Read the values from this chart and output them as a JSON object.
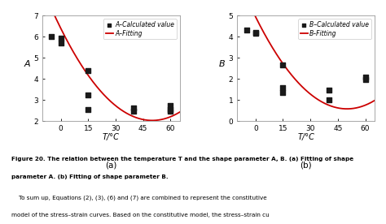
{
  "subplot_a": {
    "scatter_x": [
      -5,
      0,
      0,
      15,
      15,
      15,
      40,
      40,
      60,
      60,
      60
    ],
    "scatter_y": [
      6.0,
      5.7,
      5.95,
      4.4,
      3.25,
      2.55,
      2.6,
      2.45,
      2.75,
      2.55,
      2.45
    ],
    "fit_coeffs_a": 0.00175,
    "fit_coeffs_b": -0.175,
    "fit_coeffs_c": 6.4,
    "fit_x_start": -10,
    "fit_x_end": 65,
    "ylabel": "A",
    "xlabel": "T/°C",
    "ylim": [
      2,
      7
    ],
    "yticks": [
      2,
      3,
      4,
      5,
      6,
      7
    ],
    "xlim": [
      -10,
      65
    ],
    "xticks": [
      0,
      15,
      30,
      45,
      60
    ],
    "legend_scatter": "A–Calculated value",
    "legend_fit": "A–Fitting",
    "sublabel": "(a)"
  },
  "subplot_b": {
    "scatter_x": [
      -5,
      0,
      0,
      15,
      15,
      15,
      40,
      40,
      60,
      60
    ],
    "scatter_y": [
      4.3,
      4.2,
      4.15,
      2.65,
      1.6,
      1.35,
      1.45,
      1.0,
      2.1,
      1.95
    ],
    "fit_coeffs_a": 0.00175,
    "fit_coeffs_b": -0.175,
    "fit_coeffs_c": 4.95,
    "fit_x_start": -10,
    "fit_x_end": 65,
    "ylabel": "B",
    "xlabel": "T/°C",
    "ylim": [
      0,
      5
    ],
    "yticks": [
      0,
      1,
      2,
      3,
      4,
      5
    ],
    "xlim": [
      -10,
      65
    ],
    "xticks": [
      0,
      15,
      30,
      45,
      60
    ],
    "legend_scatter": "B–Calculated value",
    "legend_fit": "B–Fitting",
    "sublabel": "(b)"
  },
  "scatter_color": "#1a1a1a",
  "fit_color": "#cc0000",
  "background": "#ffffff",
  "scatter_marker": "s",
  "scatter_size": 14,
  "font_size": 7,
  "caption_line1": "Figure 20. The relation between the temperature T and the shape parameter A, B. (a) Fitting of shape",
  "caption_line2": "parameter A. (b) Fitting of shape parameter B.",
  "body_line1": "    To sum up, Equations (2), (3), (6) and (7) are combined to represent the constitutive",
  "body_line2": "model of the stress–strain curves. Based on the constitutive model, the stress–strain cu"
}
